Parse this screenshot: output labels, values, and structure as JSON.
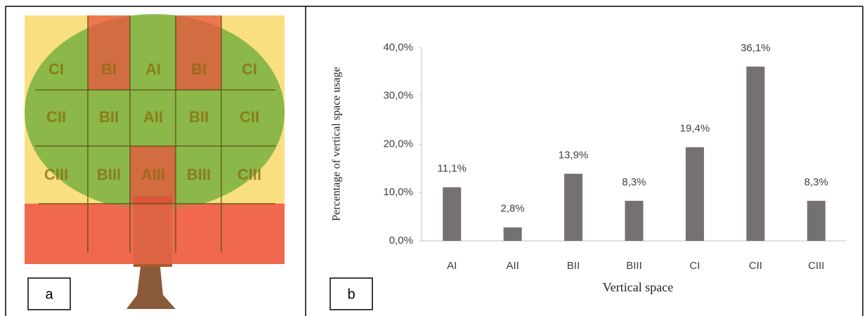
{
  "panel_a": {
    "label": "a",
    "grid": [
      [
        "CI",
        "BI",
        "AI",
        "BI",
        "CI"
      ],
      [
        "CII",
        "BII",
        "AII",
        "BII",
        "CII"
      ],
      [
        "CIII",
        "BIII",
        "AIII",
        "BIII",
        "CIII"
      ]
    ]
  },
  "panel_b": {
    "label": "b"
  },
  "chart_data": {
    "type": "bar",
    "x_label": "Vertical space",
    "y_label": "Percentage of vertical space usage",
    "categories": [
      "AI",
      "AII",
      "BII",
      "BIII",
      "CI",
      "CII",
      "CIII"
    ],
    "values": [
      11.1,
      2.8,
      13.9,
      8.3,
      19.4,
      36.1,
      8.3
    ],
    "value_labels": [
      "11,1%",
      "2,8%",
      "13,9%",
      "8,3%",
      "19,4%",
      "36,1%",
      "8,3%"
    ],
    "color": "#767171",
    "ylim": [
      0,
      40
    ],
    "yticks": [
      {
        "value": 0,
        "label": "0,0%"
      },
      {
        "value": 10,
        "label": "10,0%"
      },
      {
        "value": 20,
        "label": "20,0%"
      },
      {
        "value": 30,
        "label": "30,0%"
      },
      {
        "value": 40,
        "label": "40,0%"
      }
    ]
  }
}
